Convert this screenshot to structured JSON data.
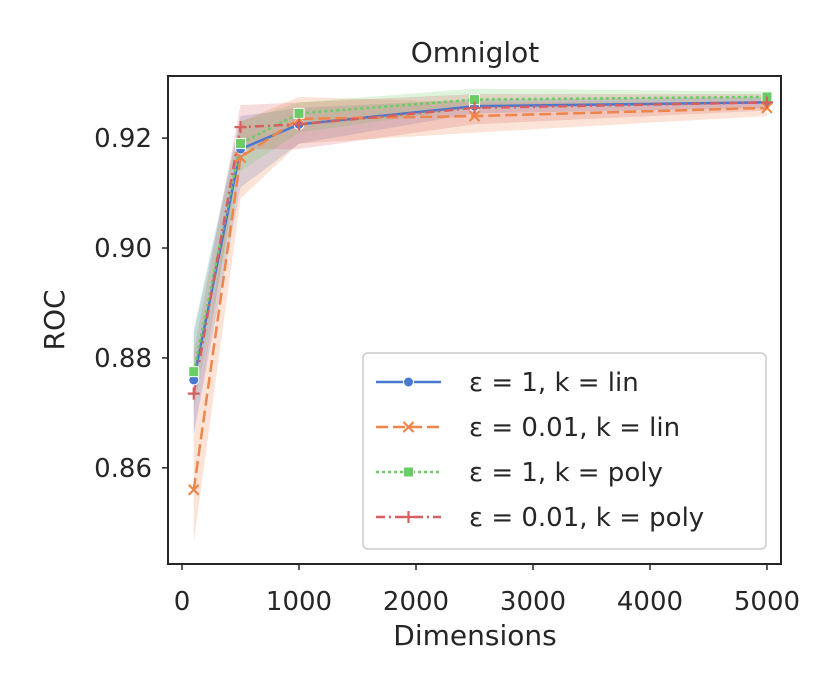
{
  "chart_data": {
    "type": "line",
    "title": "Omniglot",
    "xlabel": "Dimensions",
    "ylabel": "ROC",
    "xlim": [
      -120,
      5120
    ],
    "ylim": [
      0.8425,
      0.9313
    ],
    "xticks": [
      0,
      1000,
      2000,
      3000,
      4000,
      5000
    ],
    "xtick_labels": [
      "0",
      "1000",
      "2000",
      "3000",
      "4000",
      "5000"
    ],
    "yticks": [
      0.86,
      0.88,
      0.9,
      0.92
    ],
    "ytick_labels": [
      "0.86",
      "0.88",
      "0.90",
      "0.92"
    ],
    "x": [
      100,
      500,
      1000,
      2500,
      5000
    ],
    "grid": false,
    "legend_position": "lower-right",
    "series": [
      {
        "name": "ε = 1, k = lin",
        "color": "#4878d0",
        "dash": "solid",
        "marker": "circle",
        "values": [
          0.876,
          0.918,
          0.9225,
          0.9258,
          0.9265
        ],
        "ci_low": [
          0.866,
          0.911,
          0.919,
          0.9245,
          0.9255
        ],
        "ci_high": [
          0.885,
          0.924,
          0.9255,
          0.927,
          0.9275
        ]
      },
      {
        "name": "ε = 0.01, k = lin",
        "color": "#ee854a",
        "dash": "dashed",
        "marker": "x",
        "values": [
          0.856,
          0.9165,
          0.9235,
          0.924,
          0.9255
        ],
        "ci_low": [
          0.8465,
          0.909,
          0.919,
          0.921,
          0.924
        ],
        "ci_high": [
          0.8655,
          0.923,
          0.9275,
          0.9265,
          0.9265
        ]
      },
      {
        "name": "ε = 1, k = poly",
        "color": "#6acc64",
        "dash": "dotted",
        "marker": "square",
        "values": [
          0.8775,
          0.919,
          0.9245,
          0.927,
          0.9275
        ],
        "ci_low": [
          0.8705,
          0.914,
          0.921,
          0.9255,
          0.9265
        ],
        "ci_high": [
          0.8845,
          0.923,
          0.9265,
          0.929,
          0.9285
        ]
      },
      {
        "name": "ε = 0.01, k = poly",
        "color": "#d65f5f",
        "dash": "dashdot",
        "marker": "plus",
        "values": [
          0.8735,
          0.922,
          0.9225,
          0.9255,
          0.9265
        ],
        "ci_low": [
          0.866,
          0.918,
          0.918,
          0.9225,
          0.925
        ],
        "ci_high": [
          0.881,
          0.926,
          0.9265,
          0.928,
          0.928
        ]
      }
    ]
  }
}
